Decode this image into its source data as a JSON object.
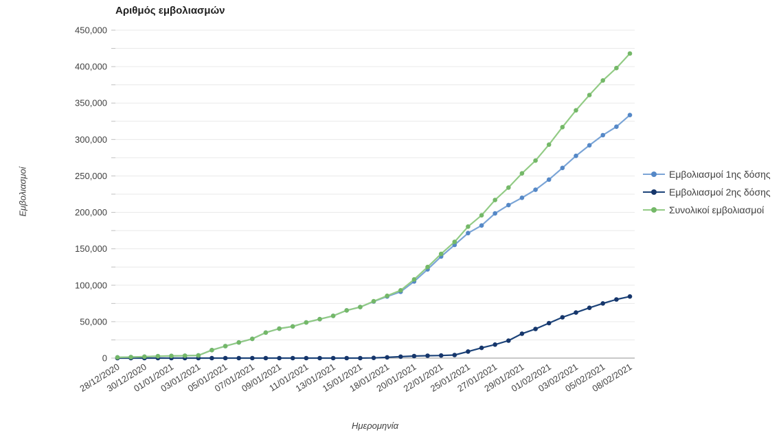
{
  "chart": {
    "title": "Αριθμός εμβολιασμών",
    "x_axis_title": "Ημερομηνία",
    "y_axis_title": "Εμβολιασμοί"
  },
  "chart_data": {
    "type": "line",
    "title": "Αριθμός εμβολιασμών",
    "xlabel": "Ημερομηνία",
    "ylabel": "Εμβολιασμοί",
    "ylim": [
      0,
      450000
    ],
    "y_tick_step": 50000,
    "y_grid_step": 25000,
    "grid": true,
    "legend_position": "right",
    "y_tick_labels": [
      "0",
      "50,000",
      "100,000",
      "150,000",
      "200,000",
      "250,000",
      "300,000",
      "350,000",
      "400,000",
      "450,000"
    ],
    "x_tick_every": 2,
    "x_tick_labels": [
      "28/12/2020",
      "30/12/2020",
      "01/01/2021",
      "03/01/2021",
      "05/01/2021",
      "07/01/2021",
      "09/01/2021",
      "11/01/2021",
      "13/01/2021",
      "15/01/2021",
      "18/01/2021",
      "20/01/2021",
      "22/01/2021",
      "25/01/2021",
      "27/01/2021",
      "29/01/2021",
      "01/02/2021",
      "03/02/2021",
      "05/02/2021",
      "08/02/2021"
    ],
    "dates": [
      "28/12/2020",
      "29/12/2020",
      "30/12/2020",
      "31/12/2020",
      "01/01/2021",
      "02/01/2021",
      "03/01/2021",
      "04/01/2021",
      "05/01/2021",
      "06/01/2021",
      "07/01/2021",
      "08/01/2021",
      "09/01/2021",
      "10/01/2021",
      "11/01/2021",
      "12/01/2021",
      "13/01/2021",
      "14/01/2021",
      "15/01/2021",
      "16/01/2021",
      "18/01/2021",
      "19/01/2021",
      "20/01/2021",
      "21/01/2021",
      "22/01/2021",
      "23/01/2021",
      "25/01/2021",
      "26/01/2021",
      "27/01/2021",
      "28/01/2021",
      "29/01/2021",
      "30/01/2021",
      "01/02/2021",
      "02/02/2021",
      "03/02/2021",
      "04/02/2021",
      "05/02/2021",
      "06/02/2021",
      "08/02/2021"
    ],
    "series": [
      {
        "name": "Εμβολιασμοί 1ης δόσης",
        "color": "#7AA4D6",
        "marker_color": "#5588C7",
        "values": [
          1000,
          1400,
          2000,
          2600,
          3000,
          3300,
          3700,
          11000,
          16500,
          21500,
          26500,
          35000,
          40500,
          43500,
          49000,
          53500,
          58000,
          65500,
          70000,
          77700,
          84500,
          91000,
          105200,
          121700,
          139400,
          155300,
          171500,
          182000,
          198500,
          210000,
          220000,
          231000,
          245000,
          261000,
          277500,
          292000,
          306000,
          317500,
          333500
        ]
      },
      {
        "name": "Εμβολιασμοί 2ης δόσης",
        "color": "#1C4379",
        "marker_color": "#16366B",
        "values": [
          0,
          0,
          0,
          0,
          0,
          0,
          0,
          0,
          0,
          0,
          0,
          0,
          0,
          0,
          0,
          0,
          0,
          0,
          0,
          300,
          1000,
          2000,
          2800,
          3300,
          3600,
          4200,
          9000,
          14000,
          18500,
          24000,
          33500,
          40000,
          48000,
          56000,
          62500,
          69000,
          75000,
          80500,
          84500
        ]
      },
      {
        "name": "Συνολικοί εμβολιασμοί",
        "color": "#92CB85",
        "marker_color": "#74B868",
        "values": [
          1000,
          1400,
          2000,
          2600,
          3000,
          3300,
          3700,
          11000,
          16500,
          21500,
          26500,
          35000,
          40500,
          43500,
          49000,
          53500,
          58000,
          65500,
          70000,
          78000,
          85500,
          93000,
          108000,
          125000,
          143000,
          159500,
          180500,
          196000,
          217000,
          234000,
          253500,
          271000,
          293000,
          317000,
          340000,
          361000,
          381000,
          398000,
          418000
        ]
      }
    ],
    "colors": {
      "grid": "#E9E9E9",
      "axis_line": "#A6A6A6",
      "tick": "#BFBFBF",
      "tick_text": "#404040",
      "title_text": "#1F1F1F"
    }
  }
}
